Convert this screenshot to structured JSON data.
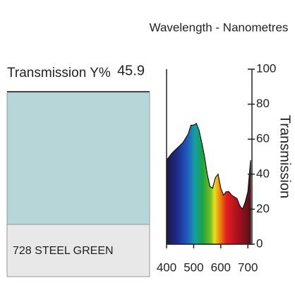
{
  "chart_data": {
    "type": "area",
    "title": "Wavelength - Nanometres",
    "y_label": "Transmission",
    "x": [
      400,
      420,
      440,
      460,
      480,
      490,
      500,
      510,
      520,
      530,
      540,
      550,
      560,
      570,
      580,
      590,
      600,
      610,
      620,
      630,
      640,
      650,
      660,
      670,
      680,
      690,
      700,
      710
    ],
    "values": [
      48,
      52,
      55,
      58,
      63,
      68,
      68,
      69,
      65,
      58,
      50,
      40,
      33,
      32,
      38,
      40,
      32,
      28,
      30,
      30,
      28,
      27,
      26,
      22,
      20,
      24,
      30,
      48
    ],
    "xlim": [
      400,
      715
    ],
    "ylim": [
      0,
      100
    ],
    "xticks": [
      400,
      500,
      600,
      700
    ],
    "yticks": [
      0,
      20,
      40,
      60,
      80,
      100
    ]
  },
  "swatch": {
    "label": "Transmission Y%",
    "value": 45.9,
    "name": "728 STEEL GREEN",
    "color": "#b7d6d8"
  }
}
